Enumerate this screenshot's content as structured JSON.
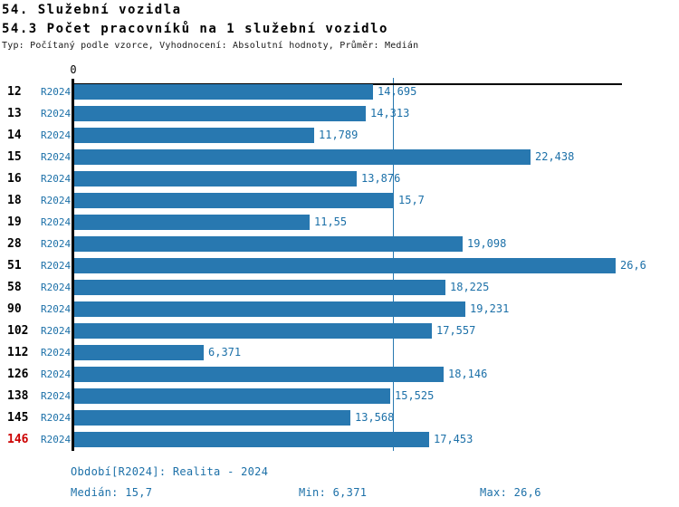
{
  "header": {
    "title1": "54. Služební vozidla",
    "title2": "54.3 Počet pracovníků na 1 služební vozidlo",
    "subtitle": "Typ: Počítaný podle vzorce, Vyhodnocení: Absolutní hodnoty, Průměr: Medián"
  },
  "chart_data": {
    "type": "bar",
    "orientation": "horizontal",
    "title": "54.3 Počet pracovníků na 1 služební vozidlo",
    "categories": [
      "12",
      "13",
      "14",
      "15",
      "16",
      "18",
      "19",
      "28",
      "51",
      "58",
      "90",
      "102",
      "112",
      "126",
      "138",
      "145",
      "146"
    ],
    "series": [
      {
        "name": "R2024",
        "values": [
          14.695,
          14.313,
          11.789,
          22.438,
          13.876,
          15.7,
          11.55,
          19.098,
          26.6,
          18.225,
          19.231,
          17.557,
          6.371,
          18.146,
          15.525,
          13.568,
          17.453
        ]
      }
    ],
    "value_labels": [
      "14,695",
      "14,313",
      "11,789",
      "22,438",
      "13,876",
      "15,7",
      "11,55",
      "19,098",
      "26,6",
      "18,225",
      "19,231",
      "17,557",
      "6,371",
      "18,146",
      "15,525",
      "13,568",
      "17,453"
    ],
    "axis": {
      "zero_label": "0",
      "xlim": [
        0,
        26.9
      ],
      "median_value": 15.7,
      "grid": false
    },
    "highlight_category": "146",
    "median": 15.7,
    "min": 6.371,
    "max": 26.6,
    "legend_position": "none"
  },
  "footer": {
    "period": "Období[R2024]: Realita - 2024",
    "median": "Medián: 15,7",
    "min": "Min: 6,371",
    "max": "Max: 26,6"
  },
  "colors": {
    "bar": "#2878b0",
    "blue_text": "#1c70a8",
    "highlight": "#cc0000",
    "axis": "#000000"
  }
}
